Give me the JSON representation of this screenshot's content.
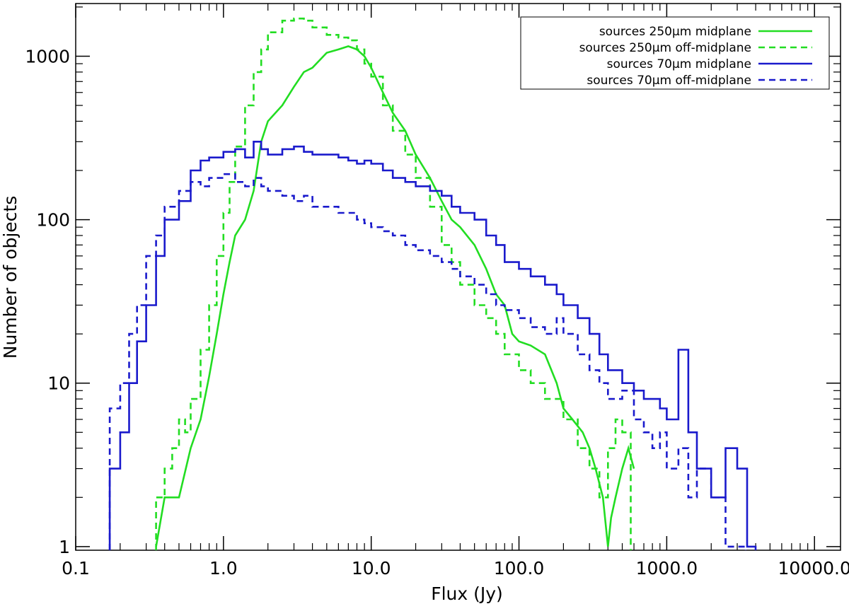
{
  "chart_data": {
    "type": "line",
    "title": "",
    "xlabel": "Flux (Jy)",
    "ylabel": "Number of objects",
    "x_scale": "log",
    "y_scale": "log",
    "xlim": [
      0.1,
      15000
    ],
    "ylim": [
      0.95,
      2100
    ],
    "x_ticks": [
      0.1,
      1,
      10,
      100,
      1000,
      10000
    ],
    "x_tick_labels": [
      "0.1",
      "1.0",
      "10.0",
      "100.0",
      "1000.0",
      "10000.0"
    ],
    "y_ticks": [
      1,
      10,
      100,
      1000
    ],
    "y_tick_labels": [
      "1",
      "10",
      "100",
      "1000"
    ],
    "grid": false,
    "legend_position": "top-right",
    "series": [
      {
        "name": "sources 250μm midplane",
        "color": "#22dd22",
        "style": "solid",
        "step": false,
        "x": [
          0.35,
          0.4,
          0.5,
          0.6,
          0.7,
          0.8,
          0.9,
          1.0,
          1.1,
          1.2,
          1.4,
          1.6,
          1.8,
          2.0,
          2.5,
          3.0,
          3.5,
          4.0,
          5.0,
          6.0,
          7.0,
          8.0,
          9.0,
          10.0,
          12.0,
          14.0,
          17.0,
          20.0,
          25.0,
          30.0,
          35.0,
          40.0,
          50.0,
          60.0,
          70.0,
          80.0,
          90.0,
          100.0,
          120.0,
          150.0,
          180.0,
          200.0,
          230.0,
          270.0,
          300.0,
          330.0,
          370.0,
          400.0,
          420.0,
          450.0,
          500.0,
          550.0,
          600.0
        ],
        "y": [
          1,
          2,
          2,
          4,
          6,
          11,
          20,
          35,
          55,
          80,
          100,
          150,
          300,
          400,
          500,
          650,
          800,
          850,
          1050,
          1100,
          1150,
          1100,
          1000,
          850,
          600,
          450,
          350,
          250,
          180,
          130,
          100,
          90,
          70,
          50,
          35,
          30,
          20,
          18,
          17,
          15,
          10,
          7,
          6,
          5,
          4,
          3,
          2,
          1,
          1.5,
          2,
          3,
          4,
          3
        ]
      },
      {
        "name": "sources 250μm off-midplane",
        "color": "#22dd22",
        "style": "dashed",
        "step": true,
        "x": [
          0.35,
          0.4,
          0.45,
          0.5,
          0.55,
          0.6,
          0.7,
          0.8,
          0.9,
          1.0,
          1.1,
          1.2,
          1.4,
          1.6,
          1.8,
          2.0,
          2.5,
          3.0,
          3.5,
          4.0,
          5.0,
          6.0,
          7.0,
          8.0,
          9.0,
          10.0,
          12.0,
          14.0,
          17.0,
          20.0,
          25.0,
          30.0,
          35.0,
          40.0,
          50.0,
          60.0,
          70.0,
          80.0,
          100.0,
          120.0,
          150.0,
          200.0,
          250.0,
          300.0,
          350.0,
          400.0,
          450.0,
          500.0
        ],
        "y": [
          2,
          3,
          4,
          6,
          5,
          8,
          16,
          30,
          60,
          110,
          170,
          280,
          500,
          800,
          1100,
          1400,
          1650,
          1700,
          1650,
          1500,
          1350,
          1300,
          1250,
          1100,
          900,
          750,
          500,
          350,
          250,
          180,
          120,
          70,
          55,
          40,
          30,
          25,
          20,
          15,
          12,
          10,
          8,
          6,
          4,
          3,
          2,
          4,
          6,
          5
        ]
      },
      {
        "name": "sources 70μm midplane",
        "color": "#1a1acc",
        "style": "solid",
        "step": true,
        "x": [
          0.17,
          0.2,
          0.23,
          0.26,
          0.3,
          0.35,
          0.4,
          0.5,
          0.6,
          0.7,
          0.8,
          1.0,
          1.2,
          1.4,
          1.6,
          1.8,
          2.0,
          2.5,
          3.0,
          3.5,
          4.0,
          5.0,
          6.0,
          7.0,
          8.0,
          9.0,
          10.0,
          12.0,
          14.0,
          17.0,
          20.0,
          25.0,
          30.0,
          35.0,
          40.0,
          50.0,
          60.0,
          70.0,
          80.0,
          100.0,
          120.0,
          150.0,
          180.0,
          200.0,
          250.0,
          300.0,
          350.0,
          400.0,
          500.0,
          600.0,
          700.0,
          800.0,
          900.0,
          1000.0,
          1200.0,
          1400.0,
          1600.0,
          2000.0,
          2500.0,
          3000.0,
          3500.0
        ],
        "y": [
          3,
          5,
          10,
          18,
          30,
          60,
          100,
          130,
          200,
          230,
          240,
          260,
          270,
          240,
          300,
          270,
          250,
          270,
          280,
          260,
          250,
          250,
          240,
          230,
          220,
          230,
          220,
          200,
          180,
          170,
          160,
          150,
          140,
          120,
          110,
          100,
          80,
          70,
          55,
          50,
          45,
          40,
          35,
          30,
          25,
          20,
          15,
          12,
          10,
          9,
          8,
          8,
          7,
          6,
          16,
          5,
          3,
          2,
          4,
          3,
          1
        ]
      },
      {
        "name": "sources 70μm off-midplane",
        "color": "#1a1acc",
        "style": "dashed",
        "step": true,
        "x": [
          0.17,
          0.2,
          0.23,
          0.26,
          0.3,
          0.35,
          0.4,
          0.5,
          0.6,
          0.7,
          0.8,
          1.0,
          1.2,
          1.4,
          1.6,
          1.8,
          2.0,
          2.5,
          3.0,
          3.5,
          4.0,
          5.0,
          6.0,
          7.0,
          8.0,
          9.0,
          10.0,
          12.0,
          14.0,
          17.0,
          20.0,
          25.0,
          30.0,
          35.0,
          40.0,
          50.0,
          60.0,
          70.0,
          80.0,
          100.0,
          120.0,
          150.0,
          180.0,
          200.0,
          250.0,
          300.0,
          350.0,
          400.0,
          500.0,
          600.0,
          700.0,
          800.0,
          900.0,
          1000.0,
          1200.0,
          1400.0,
          1600.0,
          2000.0,
          2500.0,
          3000.0
        ],
        "y": [
          7,
          10,
          20,
          30,
          60,
          80,
          120,
          150,
          170,
          160,
          180,
          190,
          170,
          160,
          180,
          160,
          150,
          140,
          130,
          140,
          120,
          120,
          110,
          110,
          100,
          95,
          90,
          85,
          80,
          70,
          65,
          60,
          55,
          50,
          45,
          40,
          35,
          30,
          28,
          25,
          22,
          20,
          25,
          20,
          15,
          12,
          10,
          8,
          9,
          6,
          5,
          4,
          5,
          3,
          4,
          2,
          3,
          2,
          1,
          1
        ]
      }
    ]
  }
}
